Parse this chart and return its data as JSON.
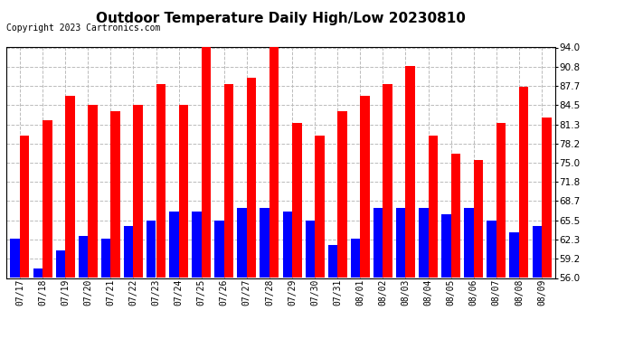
{
  "title": "Outdoor Temperature Daily High/Low 20230810",
  "copyright_text": "Copyright 2023 Cartronics.com",
  "dates": [
    "07/17",
    "07/18",
    "07/19",
    "07/20",
    "07/21",
    "07/22",
    "07/23",
    "07/24",
    "07/25",
    "07/26",
    "07/27",
    "07/28",
    "07/29",
    "07/30",
    "07/31",
    "08/01",
    "08/02",
    "08/03",
    "08/04",
    "08/05",
    "08/06",
    "08/07",
    "08/08",
    "08/09"
  ],
  "high_values": [
    79.5,
    82.0,
    86.0,
    84.5,
    83.5,
    84.5,
    88.0,
    84.5,
    94.0,
    88.0,
    89.0,
    94.0,
    81.5,
    79.5,
    83.5,
    86.0,
    88.0,
    91.0,
    79.5,
    76.5,
    75.5,
    81.5,
    87.5,
    82.5
  ],
  "low_values": [
    62.5,
    57.5,
    60.5,
    63.0,
    62.5,
    64.5,
    65.5,
    67.0,
    67.0,
    65.5,
    67.5,
    67.5,
    67.0,
    65.5,
    61.5,
    62.5,
    67.5,
    67.5,
    67.5,
    66.5,
    67.5,
    65.5,
    63.5,
    64.5
  ],
  "ymin": 56.0,
  "ymax": 94.0,
  "yticks": [
    56.0,
    59.2,
    62.3,
    65.5,
    68.7,
    71.8,
    75.0,
    78.2,
    81.3,
    84.5,
    87.7,
    90.8,
    94.0
  ],
  "high_color": "#ff0000",
  "low_color": "#0000ff",
  "bg_color": "#ffffff",
  "grid_color": "#bbbbbb",
  "title_fontsize": 11,
  "copyright_fontsize": 7,
  "bar_width": 0.42
}
